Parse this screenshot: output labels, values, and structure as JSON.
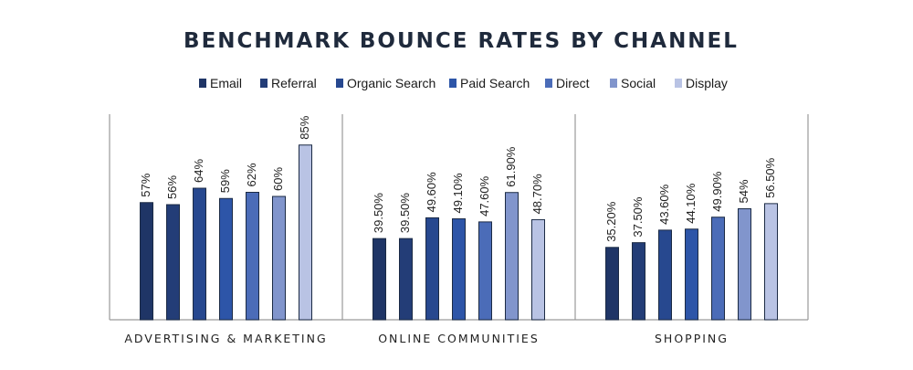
{
  "chart_data": {
    "type": "bar",
    "title": "BENCHMARK BOUNCE RATES BY CHANNEL",
    "categories": [
      "ADVERTISING & MARKETING",
      "ONLINE COMMUNITIES",
      "SHOPPING"
    ],
    "ylim": [
      0,
      100
    ],
    "legend_position": "top",
    "series": [
      {
        "name": "Email",
        "color": "#1f3566",
        "values": [
          57,
          39.5,
          35.2
        ],
        "labels": [
          "57%",
          "39.50%",
          "35.20%"
        ]
      },
      {
        "name": "Referral",
        "color": "#233d77",
        "values": [
          56,
          39.5,
          37.5
        ],
        "labels": [
          "56%",
          "39.50%",
          "37.50%"
        ]
      },
      {
        "name": "Organic Search",
        "color": "#27488f",
        "values": [
          64,
          49.6,
          43.6
        ],
        "labels": [
          "64%",
          "49.60%",
          "43.60%"
        ]
      },
      {
        "name": "Paid Search",
        "color": "#2d55a8",
        "values": [
          59,
          49.1,
          44.1
        ],
        "labels": [
          "59%",
          "49.10%",
          "44.10%"
        ]
      },
      {
        "name": "Direct",
        "color": "#4b6cb8",
        "values": [
          62,
          47.6,
          49.9
        ],
        "labels": [
          "62%",
          "47.60%",
          "49.90%"
        ]
      },
      {
        "name": "Social",
        "color": "#8195cc",
        "values": [
          60,
          61.9,
          54
        ],
        "labels": [
          "60%",
          "61.90%",
          "54%"
        ]
      },
      {
        "name": "Display",
        "color": "#b9c3e4",
        "values": [
          85,
          48.7,
          56.5
        ],
        "labels": [
          "85%",
          "48.70%",
          "56.50%"
        ]
      }
    ]
  }
}
